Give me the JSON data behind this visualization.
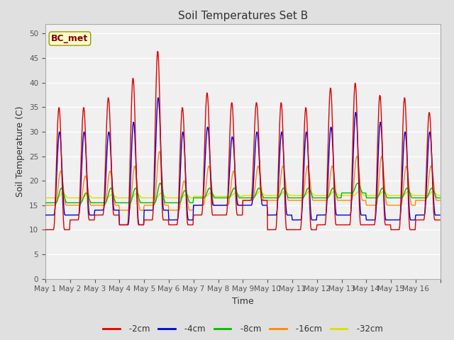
{
  "title": "Soil Temperatures Set B",
  "xlabel": "Time",
  "ylabel": "Soil Temperature (C)",
  "annotation": "BC_met",
  "ylim": [
    0,
    52
  ],
  "yticks": [
    0,
    5,
    10,
    15,
    20,
    25,
    30,
    35,
    40,
    45,
    50
  ],
  "colors": {
    "-2cm": "#dd0000",
    "-4cm": "#0000dd",
    "-8cm": "#00bb00",
    "-16cm": "#ff8800",
    "-32cm": "#dddd00"
  },
  "legend_labels": [
    "-2cm",
    "-4cm",
    "-8cm",
    "-16cm",
    "-32cm"
  ],
  "background_color": "#e0e0e0",
  "plot_bg_color": "#f0f0f0",
  "x_tick_labels": [
    "May 1",
    "May 2",
    "May 3",
    "May 4",
    "May 5",
    "May 6",
    "May 7",
    "May 8",
    "May 9",
    "May 10",
    "May 11",
    "May 12",
    "May 13",
    "May 14",
    "May 15",
    "May 16"
  ],
  "n_days": 16,
  "points_per_day": 48
}
